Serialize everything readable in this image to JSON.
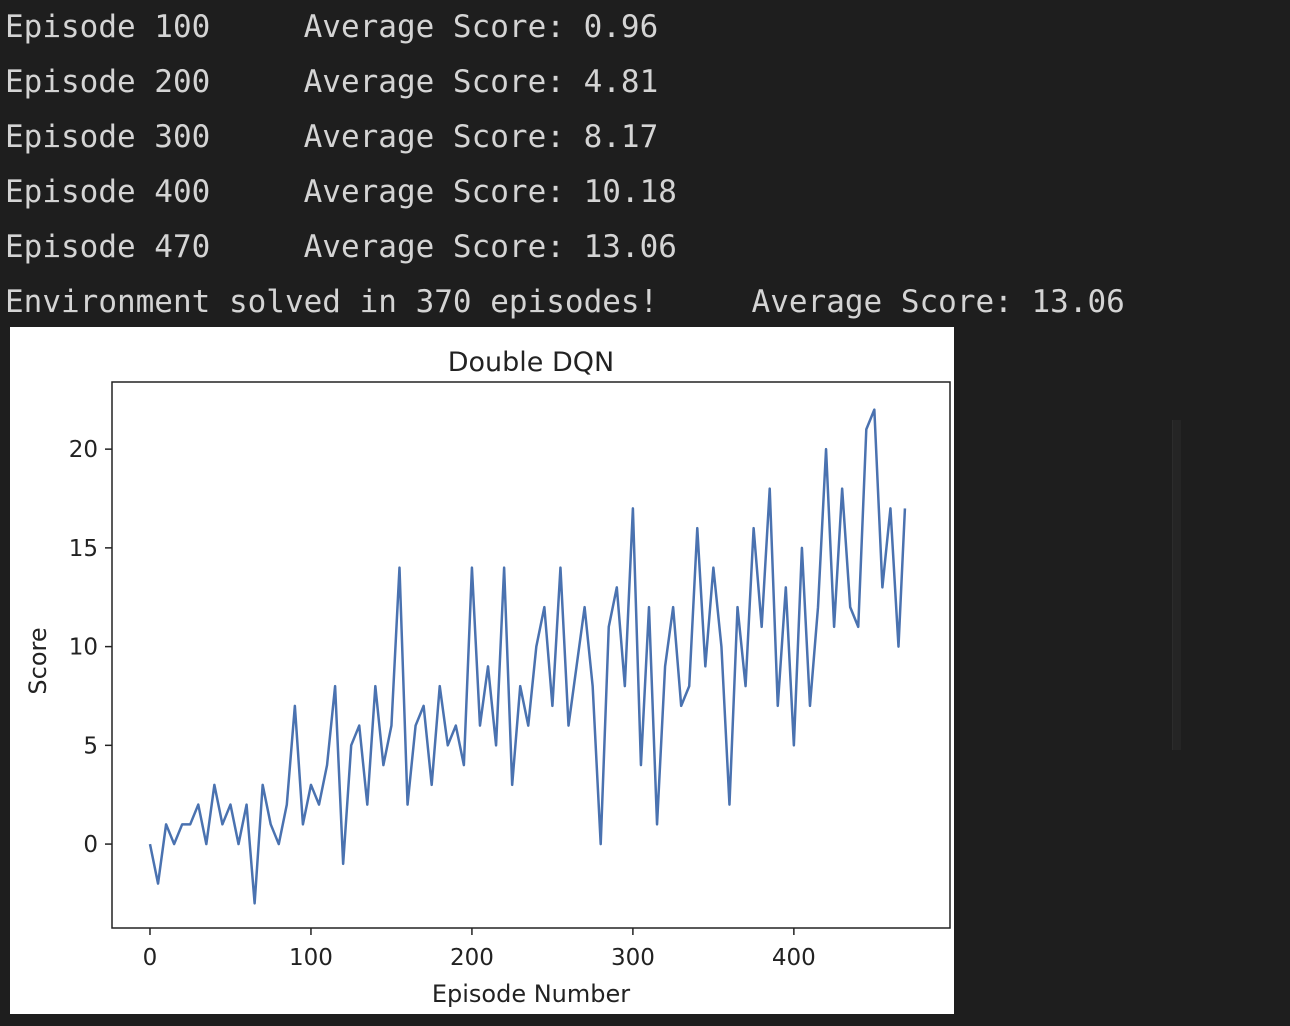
{
  "console": {
    "lines": [
      "Episode 100\tAverage Score: 0.96",
      "Episode 200\tAverage Score: 4.81",
      "Episode 300\tAverage Score: 8.17",
      "Episode 400\tAverage Score: 10.18",
      "Episode 470\tAverage Score: 13.06",
      "Environment solved in 370 episodes!\tAverage Score: 13.06"
    ]
  },
  "chart_data": {
    "type": "line",
    "title": "Double DQN",
    "x_label": "Episode Number",
    "y_label": "Score",
    "color": "#4a72b0",
    "x": [
      0,
      5,
      10,
      15,
      20,
      25,
      30,
      35,
      40,
      45,
      50,
      55,
      60,
      65,
      70,
      75,
      80,
      85,
      90,
      95,
      100,
      105,
      110,
      115,
      120,
      125,
      130,
      135,
      140,
      145,
      150,
      155,
      160,
      165,
      170,
      175,
      180,
      185,
      190,
      195,
      200,
      205,
      210,
      215,
      220,
      225,
      230,
      235,
      240,
      245,
      250,
      255,
      260,
      265,
      270,
      275,
      280,
      285,
      290,
      295,
      300,
      305,
      310,
      315,
      320,
      325,
      330,
      335,
      340,
      345,
      350,
      355,
      360,
      365,
      370,
      375,
      380,
      385,
      390,
      395,
      400,
      405,
      410,
      415,
      420,
      425,
      430,
      435,
      440,
      445,
      450,
      455,
      460,
      465,
      469
    ],
    "values": [
      0,
      -2,
      1,
      0,
      1,
      1,
      2,
      0,
      3,
      1,
      2,
      0,
      2,
      -3,
      3,
      1,
      0,
      2,
      7,
      1,
      3,
      2,
      4,
      8,
      -1,
      5,
      6,
      2,
      8,
      4,
      6,
      14,
      2,
      6,
      7,
      3,
      8,
      5,
      6,
      4,
      14,
      6,
      9,
      5,
      14,
      3,
      8,
      6,
      10,
      12,
      7,
      14,
      6,
      9,
      12,
      8,
      0,
      11,
      13,
      8,
      17,
      4,
      12,
      1,
      9,
      12,
      7,
      8,
      16,
      9,
      14,
      10,
      2,
      12,
      8,
      16,
      11,
      18,
      7,
      13,
      5,
      15,
      7,
      12,
      20,
      11,
      18,
      12,
      11,
      21,
      22,
      13,
      17,
      10,
      17
    ],
    "xlim": [
      -23.6,
      497
    ],
    "ylim": [
      -4.25,
      23.4
    ],
    "xticks": [
      0,
      100,
      200,
      300,
      400
    ],
    "yticks": [
      0,
      5,
      10,
      15,
      20
    ]
  }
}
